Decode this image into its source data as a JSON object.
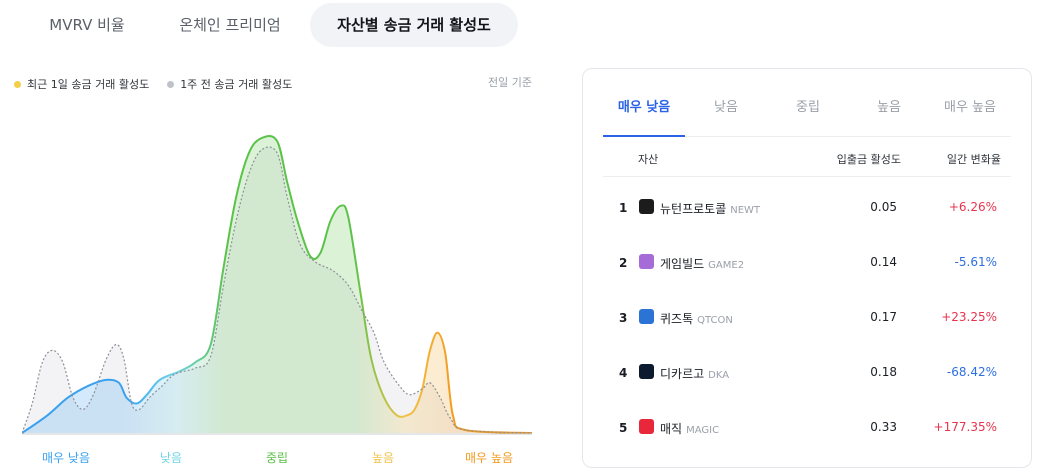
{
  "tabs": [
    {
      "label": "MVRV 비율",
      "active": false
    },
    {
      "label": "온체인 프리미엄",
      "active": false
    },
    {
      "label": "자산별 송금 거래 활성도",
      "active": true
    }
  ],
  "legend": {
    "current": {
      "label": "최근 1일 송금 거래 활성도",
      "color": "#f2cf47"
    },
    "previous": {
      "label": "1주 전 송금 거래 활성도",
      "color": "#bfc2c8"
    }
  },
  "prev_day_note": "전일 기준",
  "chart_data": {
    "type": "area",
    "categories": [
      "매우 낮음",
      "낮음",
      "중립",
      "높음",
      "매우 높음"
    ],
    "category_colors": [
      "#3aa0f0",
      "#6fd3e6",
      "#5bc24a",
      "#f2c24a",
      "#f29a1e"
    ],
    "x_range": [
      0,
      1
    ],
    "y_range": [
      0,
      100
    ],
    "series": [
      {
        "key": "current",
        "points": [
          [
            0,
            0
          ],
          [
            0.05,
            6
          ],
          [
            0.09,
            12
          ],
          [
            0.13,
            16
          ],
          [
            0.165,
            18
          ],
          [
            0.19,
            17
          ],
          [
            0.205,
            12
          ],
          [
            0.225,
            10
          ],
          [
            0.245,
            13
          ],
          [
            0.27,
            18
          ],
          [
            0.31,
            21
          ],
          [
            0.34,
            24
          ],
          [
            0.37,
            30
          ],
          [
            0.395,
            56
          ],
          [
            0.42,
            80
          ],
          [
            0.445,
            95
          ],
          [
            0.47,
            100
          ],
          [
            0.5,
            99
          ],
          [
            0.52,
            85
          ],
          [
            0.54,
            72
          ],
          [
            0.565,
            60
          ],
          [
            0.585,
            61
          ],
          [
            0.605,
            72
          ],
          [
            0.625,
            77
          ],
          [
            0.64,
            73
          ],
          [
            0.665,
            46
          ],
          [
            0.685,
            25
          ],
          [
            0.71,
            12
          ],
          [
            0.735,
            6
          ],
          [
            0.755,
            6
          ],
          [
            0.77,
            8
          ],
          [
            0.785,
            15
          ],
          [
            0.8,
            28
          ],
          [
            0.815,
            34
          ],
          [
            0.83,
            27
          ],
          [
            0.845,
            6
          ],
          [
            0.87,
            1
          ],
          [
            1,
            0
          ]
        ]
      },
      {
        "key": "previous",
        "points": [
          [
            0,
            0
          ],
          [
            0.02,
            10
          ],
          [
            0.04,
            24
          ],
          [
            0.06,
            28
          ],
          [
            0.08,
            24
          ],
          [
            0.1,
            12
          ],
          [
            0.12,
            8
          ],
          [
            0.14,
            13
          ],
          [
            0.165,
            25
          ],
          [
            0.185,
            30
          ],
          [
            0.2,
            25
          ],
          [
            0.215,
            10
          ],
          [
            0.23,
            8
          ],
          [
            0.25,
            12
          ],
          [
            0.275,
            16
          ],
          [
            0.3,
            20
          ],
          [
            0.34,
            22
          ],
          [
            0.37,
            26
          ],
          [
            0.395,
            50
          ],
          [
            0.42,
            72
          ],
          [
            0.445,
            88
          ],
          [
            0.47,
            96
          ],
          [
            0.5,
            95
          ],
          [
            0.52,
            80
          ],
          [
            0.545,
            64
          ],
          [
            0.575,
            58
          ],
          [
            0.61,
            55
          ],
          [
            0.64,
            50
          ],
          [
            0.665,
            42
          ],
          [
            0.69,
            34
          ],
          [
            0.71,
            24
          ],
          [
            0.74,
            16
          ],
          [
            0.76,
            13
          ],
          [
            0.785,
            15
          ],
          [
            0.8,
            17
          ],
          [
            0.82,
            12
          ],
          [
            0.84,
            5
          ],
          [
            0.87,
            1
          ],
          [
            1,
            0
          ]
        ]
      }
    ]
  },
  "table": {
    "level_tabs": [
      {
        "label": "매우 낮음",
        "active": true
      },
      {
        "label": "낮음",
        "active": false
      },
      {
        "label": "중립",
        "active": false
      },
      {
        "label": "높음",
        "active": false
      },
      {
        "label": "매우 높음",
        "active": false
      }
    ],
    "headers": {
      "asset": "자산",
      "activity": "입출금 활성도",
      "change": "일간 변화율"
    },
    "rows": [
      {
        "rank": "1",
        "name": "뉴턴프로토콜",
        "symbol": "NEWT",
        "activity": "0.05",
        "change": "+6.26%",
        "direction": "up",
        "icon": "newton-icon",
        "icon_color": "#1c1c1c"
      },
      {
        "rank": "2",
        "name": "게임빌드",
        "symbol": "GAME2",
        "activity": "0.14",
        "change": "-5.61%",
        "direction": "down",
        "icon": "gamebuild-icon",
        "icon_color": "#a56bd6"
      },
      {
        "rank": "3",
        "name": "퀴즈톡",
        "symbol": "QTCON",
        "activity": "0.17",
        "change": "+23.25%",
        "direction": "up",
        "icon": "quiztok-icon",
        "icon_color": "#2b74d6"
      },
      {
        "rank": "4",
        "name": "디카르고",
        "symbol": "DKA",
        "activity": "0.18",
        "change": "-68.42%",
        "direction": "down",
        "icon": "dkargo-icon",
        "icon_color": "#0b1a2e"
      },
      {
        "rank": "5",
        "name": "매직",
        "symbol": "MAGIC",
        "activity": "0.33",
        "change": "+177.35%",
        "direction": "up",
        "icon": "magic-icon",
        "icon_color": "#e8283a"
      }
    ]
  }
}
